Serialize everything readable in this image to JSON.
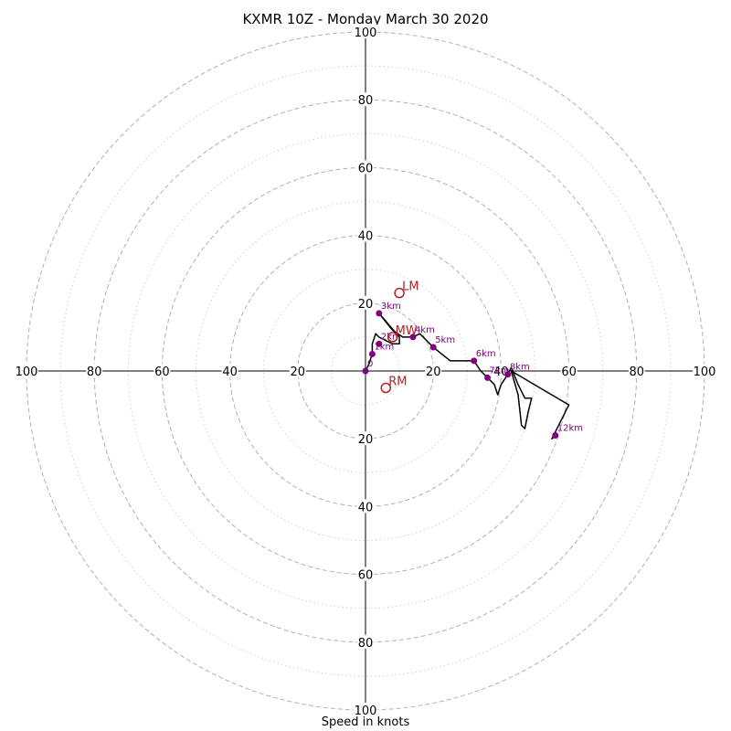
{
  "chart_data": {
    "type": "hodograph",
    "title": "KXMR 10Z - Monday March 30 2020",
    "xlabel": "Speed in knots",
    "units": "knots",
    "axis_range": [
      -100,
      100
    ],
    "ring_major": [
      20,
      40,
      60,
      80,
      100
    ],
    "ring_minor": [
      10,
      30,
      50,
      70,
      90
    ],
    "tick_labels": [
      20,
      40,
      60,
      80,
      100
    ],
    "grid": true,
    "colors": {
      "trace": "#000000",
      "markers": "#800080",
      "storm_motion": "#b22222",
      "ring_major": "#b0b0b0",
      "ring_minor": "#d0d0d0"
    },
    "wind_profile": [
      {
        "u": 0,
        "v": 0
      },
      {
        "u": 1,
        "v": 2
      },
      {
        "u": 2,
        "v": 5
      },
      {
        "u": 2,
        "v": 8
      },
      {
        "u": 3,
        "v": 11
      },
      {
        "u": 4,
        "v": 10
      },
      {
        "u": 8,
        "v": 8
      },
      {
        "u": 10,
        "v": 8
      },
      {
        "u": 10,
        "v": 10
      },
      {
        "u": 4,
        "v": 17
      },
      {
        "u": 8,
        "v": 12
      },
      {
        "u": 11,
        "v": 10
      },
      {
        "u": 14,
        "v": 10
      },
      {
        "u": 16,
        "v": 11
      },
      {
        "u": 18,
        "v": 9
      },
      {
        "u": 20,
        "v": 7
      },
      {
        "u": 25,
        "v": 3
      },
      {
        "u": 30,
        "v": 3
      },
      {
        "u": 32,
        "v": 3
      },
      {
        "u": 34,
        "v": 0
      },
      {
        "u": 36,
        "v": -2
      },
      {
        "u": 38,
        "v": -4
      },
      {
        "u": 39,
        "v": -7
      },
      {
        "u": 40,
        "v": -4
      },
      {
        "u": 42,
        "v": -1
      },
      {
        "u": 43,
        "v": 1
      },
      {
        "u": 45,
        "v": -4
      },
      {
        "u": 47,
        "v": -8
      },
      {
        "u": 49,
        "v": -8
      },
      {
        "u": 48,
        "v": -12
      },
      {
        "u": 47,
        "v": -17
      },
      {
        "u": 46,
        "v": -16
      },
      {
        "u": 45,
        "v": -7
      },
      {
        "u": 43,
        "v": 0
      },
      {
        "u": 60,
        "v": -10
      },
      {
        "u": 55,
        "v": -20
      },
      {
        "u": 56,
        "v": -19
      }
    ],
    "height_markers": [
      {
        "label": "0",
        "u": 0,
        "v": 0
      },
      {
        "label": "1km",
        "u": 2,
        "v": 5
      },
      {
        "label": "2km",
        "u": 4,
        "v": 8
      },
      {
        "label": "3km",
        "u": 4,
        "v": 17
      },
      {
        "label": "4km",
        "u": 14,
        "v": 10
      },
      {
        "label": "5km",
        "u": 20,
        "v": 7
      },
      {
        "label": "6km",
        "u": 32,
        "v": 3
      },
      {
        "label": "7km",
        "u": 36,
        "v": -2
      },
      {
        "label": "8km",
        "u": 42,
        "v": -1
      },
      {
        "label": "12km",
        "u": 56,
        "v": -19
      }
    ],
    "storm_motion": [
      {
        "label": "LM",
        "u": 10,
        "v": 23
      },
      {
        "label": "MW",
        "u": 8,
        "v": 10
      },
      {
        "label": "RM",
        "u": 6,
        "v": -5
      }
    ]
  }
}
